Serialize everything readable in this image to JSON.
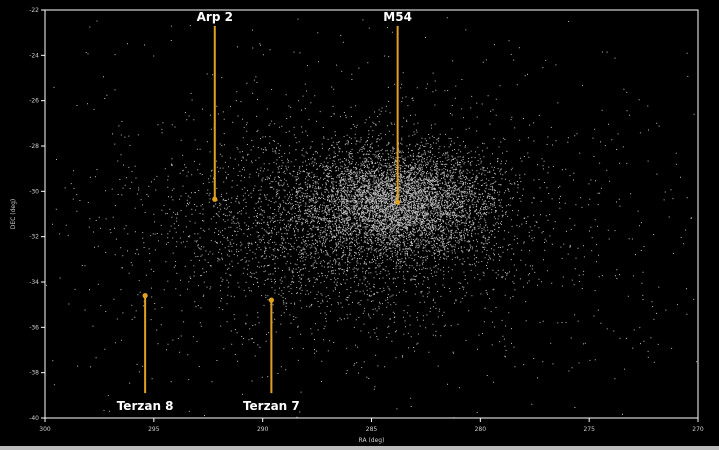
{
  "chart_data": {
    "type": "scatter",
    "title": "",
    "xlabel": "RA (deg)",
    "ylabel": "DEC (deg)",
    "xlim": [
      300,
      270
    ],
    "ylim": [
      -40,
      -22
    ],
    "x_ticks": [
      300,
      295,
      290,
      285,
      280,
      275,
      270
    ],
    "y_ticks": [
      -22,
      -24,
      -26,
      -28,
      -30,
      -32,
      -34,
      -36,
      -38,
      -40
    ],
    "grid": false,
    "background": "#000000",
    "point_color": "#ffffff",
    "annotation_color": "#e0a020",
    "label_color": "#ffffff",
    "field": {
      "n_points": 9000,
      "clusters": [
        {
          "ra": 283.8,
          "dec": -30.48,
          "sd_ra": 2.2,
          "sd_dec": 1.15,
          "weight": 0.55
        },
        {
          "ra": 286.5,
          "dec": -31.6,
          "sd_ra": 4.0,
          "sd_dec": 2.0,
          "weight": 0.3
        },
        {
          "ra": 285.0,
          "dec": -31.5,
          "sd_ra": 9.0,
          "sd_dec": 4.5,
          "weight": 0.15
        }
      ]
    },
    "annotations": [
      {
        "label": "Arp 2",
        "ra": 292.2,
        "dec": -30.35,
        "label_dec": -22.7,
        "label_pos": "above"
      },
      {
        "label": "M54",
        "ra": 283.8,
        "dec": -30.48,
        "label_dec": -22.7,
        "label_pos": "above"
      },
      {
        "label": "Terzan 8",
        "ra": 295.4,
        "dec": -34.6,
        "label_dec": -38.9,
        "label_pos": "below"
      },
      {
        "label": "Terzan 7",
        "ra": 289.6,
        "dec": -34.8,
        "label_dec": -38.9,
        "label_pos": "below"
      }
    ]
  }
}
